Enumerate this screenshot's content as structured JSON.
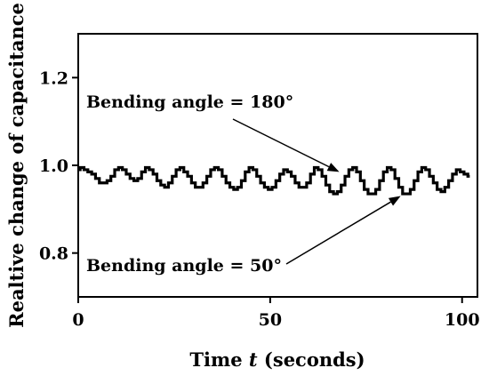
{
  "chart_data": {
    "type": "line",
    "title": "",
    "xlabel_prefix": "Time ",
    "xlabel_var": "t",
    "xlabel_suffix": " (seconds)",
    "ylabel": "Realtive change of capacitance",
    "xlim": [
      0,
      104
    ],
    "ylim": [
      0.7,
      1.3
    ],
    "xticks": [
      0,
      50,
      100
    ],
    "xtick_labels": [
      "0",
      "50",
      "100"
    ],
    "yticks": [
      0.8,
      1.0,
      1.2
    ],
    "ytick_labels": [
      "0.8",
      "1.0",
      "1.2"
    ],
    "grid": false,
    "legend": "none",
    "series": [
      {
        "color": "#000000",
        "x": [
          0,
          1,
          2,
          3,
          4,
          5,
          6,
          7,
          8,
          9,
          10,
          11,
          12,
          13,
          14,
          15,
          16,
          17,
          18,
          19,
          20,
          21,
          22,
          23,
          24,
          25,
          26,
          27,
          28,
          29,
          30,
          31,
          32,
          33,
          34,
          35,
          36,
          37,
          38,
          39,
          40,
          41,
          42,
          43,
          44,
          45,
          46,
          47,
          48,
          49,
          50,
          51,
          52,
          53,
          54,
          55,
          56,
          57,
          58,
          59,
          60,
          61,
          62,
          63,
          64,
          65,
          66,
          67,
          68,
          69,
          70,
          71,
          72,
          73,
          74,
          75,
          76,
          77,
          78,
          79,
          80,
          81,
          82,
          83,
          84,
          85,
          86,
          87,
          88,
          89,
          90,
          91,
          92,
          93,
          94,
          95,
          96,
          97,
          98,
          99,
          100,
          101,
          102
        ],
        "y": [
          0.99,
          0.995,
          0.99,
          0.985,
          0.98,
          0.97,
          0.96,
          0.96,
          0.965,
          0.975,
          0.99,
          0.995,
          0.99,
          0.98,
          0.97,
          0.965,
          0.97,
          0.985,
          0.995,
          0.99,
          0.98,
          0.965,
          0.955,
          0.95,
          0.96,
          0.975,
          0.99,
          0.995,
          0.985,
          0.975,
          0.96,
          0.95,
          0.95,
          0.96,
          0.975,
          0.99,
          0.995,
          0.99,
          0.975,
          0.96,
          0.95,
          0.945,
          0.95,
          0.965,
          0.985,
          0.995,
          0.99,
          0.975,
          0.96,
          0.95,
          0.945,
          0.95,
          0.965,
          0.98,
          0.99,
          0.985,
          0.975,
          0.96,
          0.95,
          0.95,
          0.96,
          0.98,
          0.995,
          0.99,
          0.975,
          0.955,
          0.94,
          0.935,
          0.94,
          0.955,
          0.975,
          0.99,
          0.995,
          0.985,
          0.965,
          0.945,
          0.935,
          0.935,
          0.945,
          0.965,
          0.985,
          0.995,
          0.99,
          0.97,
          0.95,
          0.935,
          0.935,
          0.945,
          0.965,
          0.985,
          0.995,
          0.99,
          0.975,
          0.96,
          0.945,
          0.94,
          0.95,
          0.965,
          0.98,
          0.99,
          0.985,
          0.98,
          0.975
        ]
      }
    ],
    "annotations": [
      {
        "text": "Bending angle = 180°",
        "arrow_to": [
          68,
          0.985
        ]
      },
      {
        "text": "Bending angle = 50°",
        "arrow_to": [
          84,
          0.93
        ]
      }
    ]
  }
}
